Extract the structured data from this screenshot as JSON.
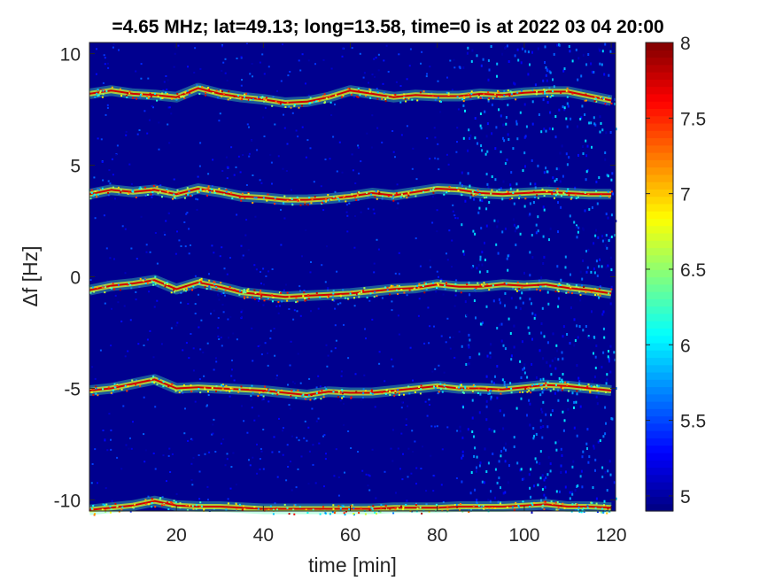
{
  "chart_data": {
    "type": "heatmap",
    "title": "=4.65 MHz;  lat=49.13; long=13.58, time=0 is at 2022 03 04 20:00",
    "xlabel": "time [min]",
    "ylabel": "Δf [Hz]",
    "xlim": [
      0,
      121
    ],
    "ylim": [
      -10.5,
      10.5
    ],
    "x_ticks": [
      20,
      40,
      60,
      80,
      100,
      120
    ],
    "x_tick_labels": [
      "20",
      "40",
      "60",
      "80",
      "100",
      "120"
    ],
    "y_ticks": [
      10,
      5,
      0,
      -5,
      -10
    ],
    "y_tick_labels": [
      "10",
      "5",
      "0",
      "-5",
      "-10"
    ],
    "colorbar": {
      "colormap": "jet",
      "clim": [
        4.9,
        8.0
      ],
      "ticks": [
        8,
        7.5,
        7,
        6.5,
        6,
        5.5,
        5
      ],
      "tick_labels": [
        "8",
        "7.5",
        "7",
        "6.5",
        "6",
        "5.5",
        "5"
      ]
    },
    "background_color": "#00008f",
    "noise_increase_after_min": 85,
    "traces": [
      {
        "offset_hz": 8,
        "times": [
          0,
          5,
          10,
          15,
          20,
          25,
          30,
          35,
          40,
          45,
          50,
          55,
          60,
          65,
          70,
          75,
          80,
          85,
          90,
          95,
          100,
          105,
          110,
          115,
          120
        ],
        "df": [
          8.2,
          8.35,
          8.2,
          8.15,
          8.05,
          8.45,
          8.2,
          8.05,
          7.95,
          7.8,
          7.85,
          8.05,
          8.35,
          8.2,
          8.05,
          8.15,
          8.1,
          8.1,
          8.2,
          8.15,
          8.25,
          8.3,
          8.3,
          8.1,
          7.9
        ]
      },
      {
        "offset_hz": 4,
        "times": [
          0,
          5,
          10,
          15,
          20,
          25,
          30,
          35,
          40,
          45,
          50,
          55,
          60,
          65,
          70,
          75,
          80,
          85,
          90,
          95,
          100,
          105,
          110,
          115,
          120
        ],
        "df": [
          3.7,
          3.9,
          3.8,
          3.9,
          3.7,
          3.95,
          3.8,
          3.6,
          3.55,
          3.45,
          3.45,
          3.5,
          3.6,
          3.75,
          3.65,
          3.8,
          3.95,
          3.9,
          3.75,
          3.7,
          3.75,
          3.8,
          3.75,
          3.7,
          3.7
        ]
      },
      {
        "offset_hz": -0.5,
        "times": [
          0,
          5,
          10,
          15,
          20,
          25,
          30,
          35,
          40,
          45,
          50,
          55,
          60,
          65,
          70,
          75,
          80,
          85,
          90,
          95,
          100,
          105,
          110,
          115,
          120
        ],
        "df": [
          -0.6,
          -0.4,
          -0.3,
          -0.15,
          -0.55,
          -0.25,
          -0.45,
          -0.7,
          -0.8,
          -0.9,
          -0.85,
          -0.8,
          -0.75,
          -0.65,
          -0.55,
          -0.5,
          -0.35,
          -0.45,
          -0.45,
          -0.35,
          -0.4,
          -0.35,
          -0.5,
          -0.6,
          -0.75
        ]
      },
      {
        "offset_hz": -5,
        "times": [
          0,
          5,
          10,
          15,
          20,
          25,
          30,
          35,
          40,
          45,
          50,
          55,
          60,
          65,
          70,
          75,
          80,
          85,
          90,
          95,
          100,
          105,
          110,
          115,
          120
        ],
        "df": [
          -5.1,
          -5.0,
          -4.8,
          -4.6,
          -5.0,
          -4.95,
          -5.0,
          -5.05,
          -5.1,
          -5.2,
          -5.3,
          -5.15,
          -5.2,
          -5.2,
          -5.1,
          -5.0,
          -4.9,
          -5.0,
          -5.0,
          -5.05,
          -4.95,
          -4.85,
          -4.9,
          -5.0,
          -5.1
        ]
      },
      {
        "offset_hz": -10.3,
        "times": [
          0,
          5,
          10,
          15,
          20,
          25,
          30,
          35,
          40,
          45,
          50,
          55,
          60,
          65,
          70,
          75,
          80,
          85,
          90,
          95,
          100,
          105,
          110,
          115,
          120
        ],
        "df": [
          -10.45,
          -10.35,
          -10.25,
          -10.05,
          -10.25,
          -10.3,
          -10.3,
          -10.35,
          -10.4,
          -10.4,
          -10.4,
          -10.4,
          -10.4,
          -10.4,
          -10.35,
          -10.35,
          -10.35,
          -10.3,
          -10.3,
          -10.3,
          -10.25,
          -10.2,
          -10.3,
          -10.3,
          -10.35
        ]
      }
    ]
  }
}
